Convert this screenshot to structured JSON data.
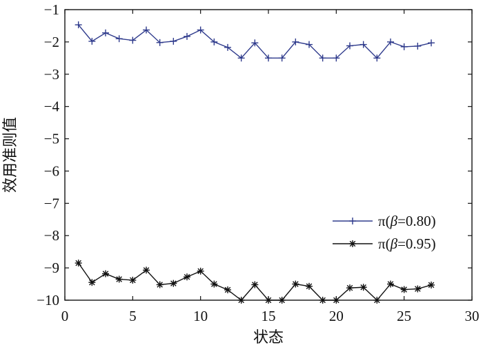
{
  "chart_data": {
    "type": "line",
    "xlabel": "状态",
    "ylabel": "效用准则值",
    "xlim": [
      0,
      30
    ],
    "ylim": [
      -10,
      -1
    ],
    "x_ticks": [
      "0",
      "5",
      "10",
      "15",
      "20",
      "25",
      "30"
    ],
    "y_ticks": [
      "−10",
      "−9",
      "−8",
      "−7",
      "−6",
      "−5",
      "−4",
      "−3",
      "−2",
      "−1"
    ],
    "grid": false,
    "legend_position": "lower-right",
    "x": [
      1,
      2,
      3,
      4,
      5,
      6,
      7,
      8,
      9,
      10,
      11,
      12,
      13,
      14,
      15,
      16,
      17,
      18,
      19,
      20,
      21,
      22,
      23,
      24,
      25,
      26,
      27
    ],
    "series": [
      {
        "name_parts": [
          "π(",
          "β",
          "=0.80)"
        ],
        "color": "#2e3a8c",
        "marker": "plus",
        "values": [
          -1.47,
          -1.98,
          -1.72,
          -1.9,
          -1.95,
          -1.63,
          -2.02,
          -1.98,
          -1.83,
          -1.63,
          -2.0,
          -2.17,
          -2.5,
          -2.03,
          -2.5,
          -2.5,
          -2.0,
          -2.08,
          -2.5,
          -2.5,
          -2.12,
          -2.08,
          -2.5,
          -2.0,
          -2.15,
          -2.13,
          -2.03
        ]
      },
      {
        "name_parts": [
          "π(",
          "β",
          "=0.95)"
        ],
        "color": "#111111",
        "marker": "star",
        "values": [
          -8.85,
          -9.45,
          -9.18,
          -9.35,
          -9.38,
          -9.07,
          -9.52,
          -9.48,
          -9.28,
          -9.1,
          -9.5,
          -9.68,
          -10.0,
          -9.52,
          -10.0,
          -10.0,
          -9.5,
          -9.57,
          -10.0,
          -10.0,
          -9.62,
          -9.6,
          -10.0,
          -9.5,
          -9.67,
          -9.65,
          -9.53
        ]
      }
    ]
  }
}
